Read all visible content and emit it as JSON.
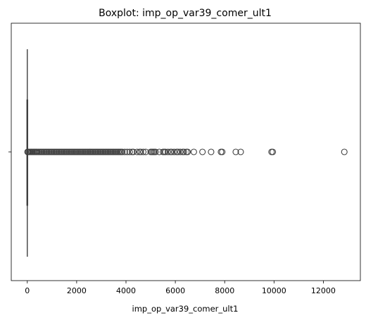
{
  "chart_data": {
    "type": "boxplot",
    "title": "Boxplot: imp_op_var39_comer_ult1",
    "xlabel": "imp_op_var39_comer_ult1",
    "ylabel": "",
    "xlim": [
      -650,
      13500
    ],
    "xticks": [
      0,
      2000,
      4000,
      6000,
      8000,
      10000,
      12000
    ],
    "xtick_labels": [
      "0",
      "2000",
      "4000",
      "6000",
      "8000",
      "10000",
      "12000"
    ],
    "yticks": [
      ""
    ],
    "orientation": "horizontal",
    "box": {
      "min": 0,
      "q1": 0,
      "median": 0,
      "q3": 0,
      "max": 0
    },
    "outliers": [
      10,
      40,
      80,
      120,
      160,
      200,
      240,
      280,
      320,
      360,
      400,
      450,
      500,
      550,
      600,
      650,
      700,
      750,
      800,
      850,
      900,
      950,
      1000,
      1050,
      1100,
      1150,
      1200,
      1250,
      1300,
      1350,
      1400,
      1450,
      1500,
      1550,
      1600,
      1650,
      1700,
      1750,
      1800,
      1850,
      1900,
      1950,
      2000,
      2050,
      2100,
      2150,
      2200,
      2250,
      2300,
      2350,
      2400,
      2450,
      2500,
      2550,
      2600,
      2650,
      2700,
      2750,
      2800,
      2850,
      2900,
      2950,
      3000,
      3050,
      3100,
      3150,
      3200,
      3250,
      3300,
      3350,
      3400,
      3450,
      3500,
      3550,
      3600,
      3650,
      3700,
      3750,
      3800,
      3850,
      3950,
      4050,
      4150,
      4250,
      4300,
      4450,
      4550,
      4600,
      4700,
      4800,
      5000,
      5050,
      5100,
      5150,
      5200,
      5350,
      5500,
      5550,
      5600,
      5700,
      5800,
      5850,
      5950,
      6050,
      6100,
      6200,
      6300,
      6350,
      6450,
      6500,
      6750,
      7100,
      7450,
      7850,
      7900,
      8450,
      8650,
      9900,
      9950,
      12850
    ]
  }
}
